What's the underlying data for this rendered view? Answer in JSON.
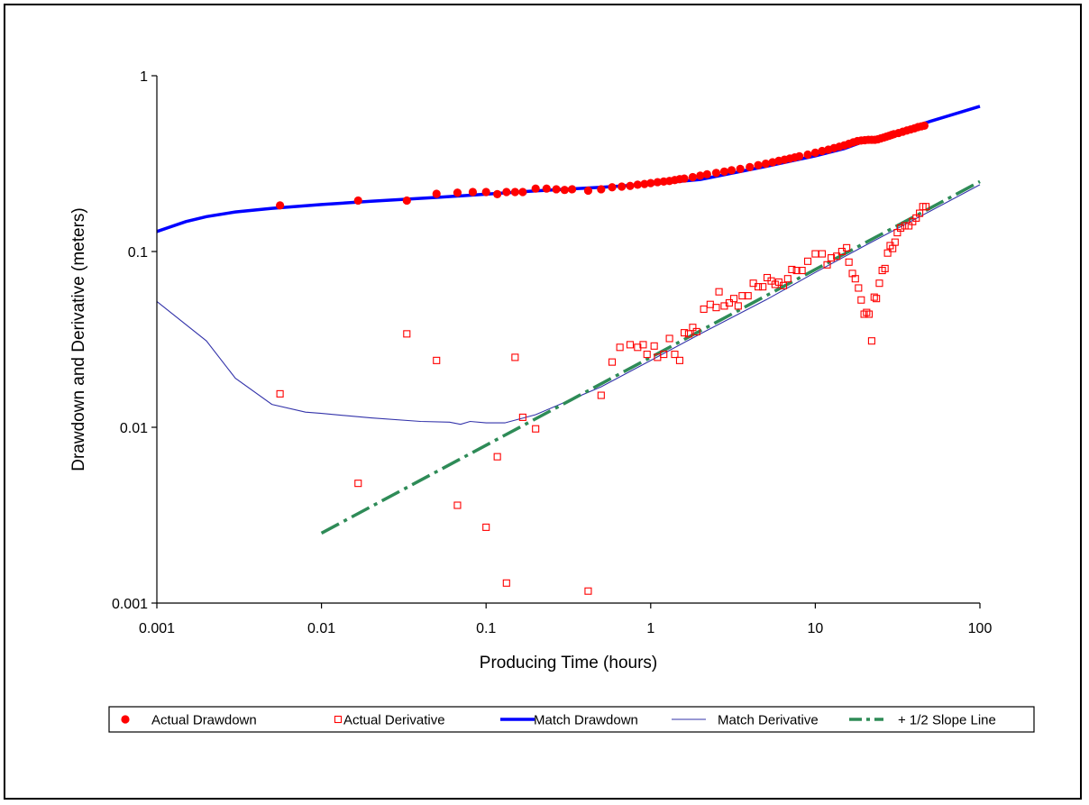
{
  "chart_data": {
    "type": "scatter",
    "xlabel": "Producing Time (hours)",
    "ylabel": "Drawdown and Derivative (meters)",
    "x_scale": "log",
    "y_scale": "log",
    "xlim": [
      0.001,
      100
    ],
    "ylim": [
      0.001,
      1
    ],
    "x_ticks": [
      "0.001",
      "0.01",
      "0.1",
      "1",
      "10",
      "100"
    ],
    "y_ticks": [
      "0.001",
      "0.01",
      "0.1",
      "1"
    ],
    "grid": false,
    "legend_position": "bottom",
    "series": [
      {
        "name": "Actual Drawdown",
        "kind": "filled-circle-markers",
        "color": "#ff0000",
        "points": [
          [
            0.0056,
            0.183
          ],
          [
            0.0167,
            0.195
          ],
          [
            0.033,
            0.195
          ],
          [
            0.05,
            0.213
          ],
          [
            0.067,
            0.216
          ],
          [
            0.083,
            0.218
          ],
          [
            0.1,
            0.218
          ],
          [
            0.117,
            0.212
          ],
          [
            0.133,
            0.218
          ],
          [
            0.15,
            0.218
          ],
          [
            0.167,
            0.218
          ],
          [
            0.2,
            0.228
          ],
          [
            0.233,
            0.228
          ],
          [
            0.267,
            0.226
          ],
          [
            0.3,
            0.224
          ],
          [
            0.333,
            0.226
          ],
          [
            0.417,
            0.222
          ],
          [
            0.5,
            0.226
          ],
          [
            0.583,
            0.232
          ],
          [
            0.667,
            0.234
          ],
          [
            0.75,
            0.236
          ],
          [
            0.833,
            0.24
          ],
          [
            0.917,
            0.242
          ],
          [
            1.0,
            0.245
          ],
          [
            1.1,
            0.248
          ],
          [
            1.2,
            0.25
          ],
          [
            1.3,
            0.252
          ],
          [
            1.4,
            0.255
          ],
          [
            1.5,
            0.258
          ],
          [
            1.6,
            0.26
          ],
          [
            1.8,
            0.265
          ],
          [
            2.0,
            0.27
          ],
          [
            2.2,
            0.275
          ],
          [
            2.5,
            0.28
          ],
          [
            2.8,
            0.285
          ],
          [
            3.1,
            0.29
          ],
          [
            3.5,
            0.295
          ],
          [
            4.0,
            0.302
          ],
          [
            4.5,
            0.31
          ],
          [
            5.0,
            0.316
          ],
          [
            5.5,
            0.322
          ],
          [
            6.0,
            0.328
          ],
          [
            6.5,
            0.333
          ],
          [
            7.0,
            0.338
          ],
          [
            7.5,
            0.343
          ],
          [
            8.0,
            0.348
          ],
          [
            9.0,
            0.356
          ],
          [
            10.0,
            0.365
          ],
          [
            11.0,
            0.373
          ],
          [
            12.0,
            0.38
          ],
          [
            13.0,
            0.388
          ],
          [
            14.0,
            0.395
          ],
          [
            15.0,
            0.402
          ],
          [
            16.0,
            0.41
          ],
          [
            17.0,
            0.418
          ],
          [
            18.0,
            0.425
          ],
          [
            19.0,
            0.428
          ],
          [
            20.0,
            0.43
          ],
          [
            21.0,
            0.432
          ],
          [
            22.0,
            0.432
          ],
          [
            23.0,
            0.432
          ],
          [
            24.0,
            0.435
          ],
          [
            25.0,
            0.44
          ],
          [
            26.0,
            0.445
          ],
          [
            27.0,
            0.45
          ],
          [
            28.0,
            0.455
          ],
          [
            29.0,
            0.46
          ],
          [
            30.0,
            0.465
          ],
          [
            32.0,
            0.472
          ],
          [
            34.0,
            0.48
          ],
          [
            36.0,
            0.488
          ],
          [
            38.0,
            0.495
          ],
          [
            40.0,
            0.502
          ],
          [
            42.0,
            0.51
          ],
          [
            44.0,
            0.515
          ],
          [
            46.0,
            0.52
          ]
        ]
      },
      {
        "name": "Actual Derivative",
        "kind": "open-square-markers",
        "color": "#ff0000",
        "points": [
          [
            0.0056,
            0.0155
          ],
          [
            0.0167,
            0.0048
          ],
          [
            0.033,
            0.034
          ],
          [
            0.05,
            0.024
          ],
          [
            0.067,
            0.0036
          ],
          [
            0.1,
            0.0027
          ],
          [
            0.117,
            0.0068
          ],
          [
            0.133,
            0.0013
          ],
          [
            0.15,
            0.025
          ],
          [
            0.167,
            0.0114
          ],
          [
            0.2,
            0.0098
          ],
          [
            0.417,
            0.00117
          ],
          [
            0.5,
            0.0152
          ],
          [
            0.583,
            0.0235
          ],
          [
            0.65,
            0.0285
          ],
          [
            0.75,
            0.0295
          ],
          [
            0.833,
            0.0285
          ],
          [
            0.9,
            0.0295
          ],
          [
            0.95,
            0.026
          ],
          [
            1.05,
            0.029
          ],
          [
            1.1,
            0.025
          ],
          [
            1.2,
            0.026
          ],
          [
            1.3,
            0.032
          ],
          [
            1.4,
            0.026
          ],
          [
            1.5,
            0.024
          ],
          [
            1.6,
            0.0345
          ],
          [
            1.7,
            0.034
          ],
          [
            1.8,
            0.037
          ],
          [
            1.9,
            0.035
          ],
          [
            2.1,
            0.047
          ],
          [
            2.3,
            0.05
          ],
          [
            2.5,
            0.048
          ],
          [
            2.6,
            0.059
          ],
          [
            2.8,
            0.049
          ],
          [
            3.0,
            0.051
          ],
          [
            3.2,
            0.054
          ],
          [
            3.4,
            0.049
          ],
          [
            3.6,
            0.056
          ],
          [
            3.9,
            0.056
          ],
          [
            4.2,
            0.066
          ],
          [
            4.5,
            0.063
          ],
          [
            4.8,
            0.063
          ],
          [
            5.1,
            0.071
          ],
          [
            5.4,
            0.068
          ],
          [
            5.7,
            0.065
          ],
          [
            6.0,
            0.067
          ],
          [
            6.4,
            0.064
          ],
          [
            6.8,
            0.07
          ],
          [
            7.2,
            0.079
          ],
          [
            7.7,
            0.078
          ],
          [
            8.3,
            0.078
          ],
          [
            9.0,
            0.088
          ],
          [
            10.0,
            0.097
          ],
          [
            11.0,
            0.097
          ],
          [
            11.8,
            0.084
          ],
          [
            12.5,
            0.092
          ],
          [
            13.5,
            0.094
          ],
          [
            14.5,
            0.1
          ],
          [
            15.5,
            0.105
          ],
          [
            16.0,
            0.087
          ],
          [
            16.8,
            0.075
          ],
          [
            17.5,
            0.07
          ],
          [
            18.3,
            0.062
          ],
          [
            19.0,
            0.053
          ],
          [
            19.8,
            0.044
          ],
          [
            20.5,
            0.045
          ],
          [
            21.2,
            0.044
          ],
          [
            22.0,
            0.031
          ],
          [
            22.8,
            0.055
          ],
          [
            23.5,
            0.054
          ],
          [
            24.5,
            0.066
          ],
          [
            25.5,
            0.078
          ],
          [
            26.5,
            0.08
          ],
          [
            27.5,
            0.098
          ],
          [
            28.5,
            0.108
          ],
          [
            29.5,
            0.104
          ],
          [
            30.5,
            0.113
          ],
          [
            31.5,
            0.128
          ],
          [
            33.0,
            0.136
          ],
          [
            35.0,
            0.14
          ],
          [
            37.0,
            0.14
          ],
          [
            39.0,
            0.148
          ],
          [
            41.0,
            0.155
          ],
          [
            43.0,
            0.165
          ],
          [
            45.0,
            0.18
          ],
          [
            47.0,
            0.18
          ]
        ]
      },
      {
        "name": "Match Drawdown",
        "kind": "thick-line",
        "color": "#0000ff",
        "points": [
          [
            0.001,
            0.13
          ],
          [
            0.0015,
            0.148
          ],
          [
            0.002,
            0.158
          ],
          [
            0.003,
            0.168
          ],
          [
            0.005,
            0.176
          ],
          [
            0.01,
            0.185
          ],
          [
            0.02,
            0.193
          ],
          [
            0.05,
            0.203
          ],
          [
            0.1,
            0.212
          ],
          [
            0.2,
            0.221
          ],
          [
            0.5,
            0.232
          ],
          [
            1,
            0.242
          ],
          [
            2,
            0.257
          ],
          [
            5,
            0.305
          ],
          [
            10,
            0.35
          ],
          [
            15,
            0.385
          ],
          [
            20,
            0.425
          ],
          [
            30,
            0.47
          ],
          [
            50,
            0.55
          ],
          [
            100,
            0.67
          ]
        ]
      },
      {
        "name": "Match Derivative",
        "kind": "thin-line",
        "color": "#3333aa",
        "points": [
          [
            0.001,
            0.052
          ],
          [
            0.002,
            0.031
          ],
          [
            0.003,
            0.019
          ],
          [
            0.005,
            0.0135
          ],
          [
            0.008,
            0.0122
          ],
          [
            0.01,
            0.012
          ],
          [
            0.02,
            0.0113
          ],
          [
            0.04,
            0.0108
          ],
          [
            0.06,
            0.0107
          ],
          [
            0.07,
            0.0104
          ],
          [
            0.08,
            0.0108
          ],
          [
            0.1,
            0.0106
          ],
          [
            0.13,
            0.0106
          ],
          [
            0.2,
            0.0118
          ],
          [
            0.5,
            0.017
          ],
          [
            1,
            0.024
          ],
          [
            2,
            0.034
          ],
          [
            5,
            0.053
          ],
          [
            10,
            0.076
          ],
          [
            20,
            0.108
          ],
          [
            50,
            0.17
          ],
          [
            100,
            0.24
          ]
        ]
      },
      {
        "name": "+ 1/2 Slope Line",
        "kind": "dash-dot-line",
        "color": "#2e8b57",
        "points": [
          [
            0.01,
            0.0025
          ],
          [
            100,
            0.25
          ]
        ]
      }
    ]
  }
}
